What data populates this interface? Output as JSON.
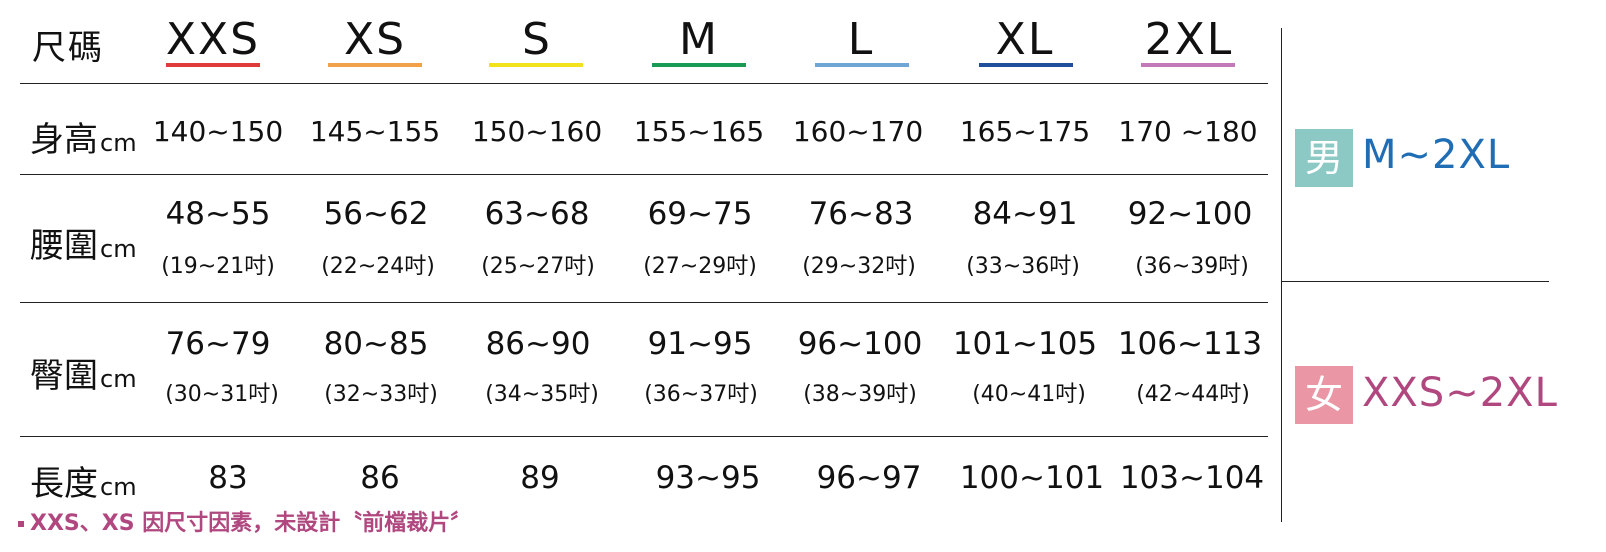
{
  "header": {
    "label": "尺碼",
    "sizes": [
      {
        "name": "XXS",
        "color": "#e03b3b"
      },
      {
        "name": "XS",
        "color": "#f0a24a"
      },
      {
        "name": "S",
        "color": "#f2e21c"
      },
      {
        "name": "M",
        "color": "#1a9a55"
      },
      {
        "name": "L",
        "color": "#6fa6d6"
      },
      {
        "name": "XL",
        "color": "#1f4e9a"
      },
      {
        "name": "2XL",
        "color": "#c27bb8"
      }
    ]
  },
  "rows": [
    {
      "label": "身高",
      "unit": "cm",
      "values": [
        "140~150",
        "145~155",
        "150~160",
        "155~165",
        "160~170",
        "165~175",
        "170 ~180"
      ]
    },
    {
      "label": "腰圍",
      "unit": "cm",
      "values": [
        "48~55",
        "56~62",
        "63~68",
        "69~75",
        "76~83",
        "84~91",
        "92~100"
      ],
      "inches": [
        "(19~21吋)",
        "(22~24吋)",
        "(25~27吋)",
        "(27~29吋)",
        "(29~32吋)",
        "(33~36吋)",
        "(36~39吋)"
      ]
    },
    {
      "label": "臀圍",
      "unit": "cm",
      "values": [
        "76~79",
        "80~85",
        "86~90",
        "91~95",
        "96~100",
        "101~105",
        "106~113"
      ],
      "inches": [
        "(30~31吋)",
        "(32~33吋)",
        "(34~35吋)",
        "(36~37吋)",
        "(38~39吋)",
        "(40~41吋)",
        "(42~44吋)"
      ]
    },
    {
      "label": "長度",
      "unit": "cm",
      "values": [
        "83",
        "86",
        "89",
        "93~95",
        "96~97",
        "100~101",
        "103~104"
      ]
    }
  ],
  "gender": {
    "male": {
      "label": "男",
      "range": "M~2XL",
      "box_color": "#8cc8c4",
      "text_color": "#1f6db5"
    },
    "female": {
      "label": "女",
      "range": "XXS~2XL",
      "box_color": "#ea96a4",
      "text_color": "#b0487f"
    }
  },
  "note": "XXS、XS 因尺寸因素，未設計〝前檔裁片〞"
}
